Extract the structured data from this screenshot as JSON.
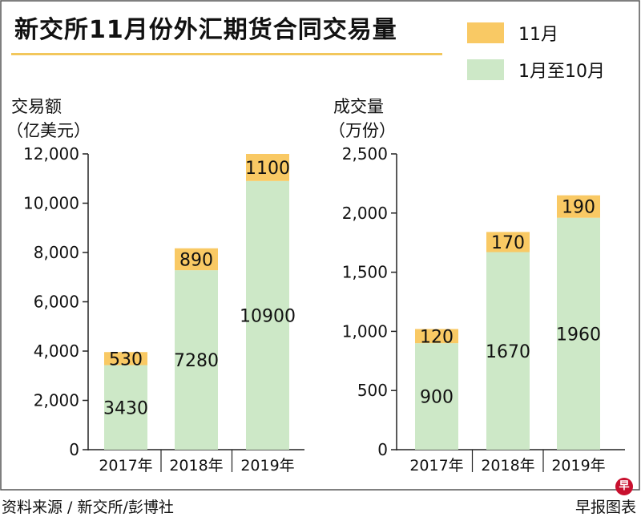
{
  "title": "新交所11月份外汇期货合同交易量",
  "legend": [
    {
      "label": "11月",
      "color": "#f9c964"
    },
    {
      "label": "1月至10月",
      "color": "#cde8c7"
    }
  ],
  "footer": {
    "source": "资料来源 / 新交所/彭博社",
    "brand": "早报图表",
    "logo_char": "早"
  },
  "chart_data": [
    {
      "type": "bar",
      "stacked": true,
      "ylabel_line1": "交易额",
      "ylabel_line2": "（亿美元）",
      "categories": [
        "2017年",
        "2018年",
        "2019年"
      ],
      "series": [
        {
          "name": "1月至10月",
          "values": [
            3430,
            7280,
            10900
          ]
        },
        {
          "name": "11月",
          "values": [
            530,
            890,
            1100
          ]
        }
      ],
      "ylim": [
        0,
        12000
      ],
      "yticks": [
        0,
        2000,
        4000,
        6000,
        8000,
        10000,
        12000
      ],
      "ytick_labels": [
        "0",
        "2,000",
        "4,000",
        "6,000",
        "8,000",
        "10,000",
        "12,000"
      ]
    },
    {
      "type": "bar",
      "stacked": true,
      "ylabel_line1": "成交量",
      "ylabel_line2": "（万份）",
      "categories": [
        "2017年",
        "2018年",
        "2019年"
      ],
      "series": [
        {
          "name": "1月至10月",
          "values": [
            900,
            1670,
            1960
          ]
        },
        {
          "name": "11月",
          "values": [
            120,
            170,
            190
          ]
        }
      ],
      "ylim": [
        0,
        2500
      ],
      "yticks": [
        0,
        500,
        1000,
        1500,
        2000,
        2500
      ],
      "ytick_labels": [
        "0",
        "500",
        "1,000",
        "1,500",
        "2,000",
        "2,500"
      ]
    }
  ]
}
